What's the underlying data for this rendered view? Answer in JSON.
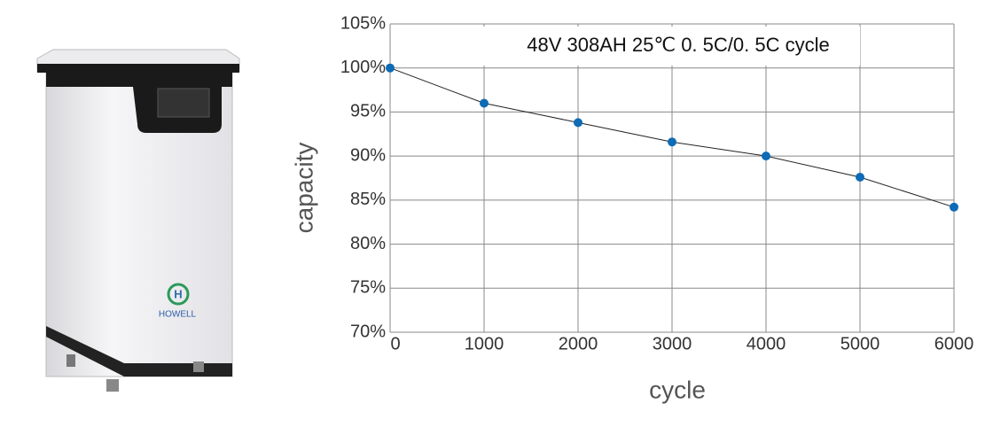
{
  "product": {
    "brand": "HOWELL"
  },
  "chart_data": {
    "type": "line",
    "title": "48V 308AH 25℃ 0. 5C/0. 5C cycle",
    "x_label": "cycle",
    "y_label": "capacity",
    "x": [
      0,
      1000,
      2000,
      3000,
      4000,
      5000,
      6000
    ],
    "values": [
      100,
      96,
      93.8,
      91.6,
      90,
      87.6,
      84.2
    ],
    "color": "#0e6bb5",
    "line_color": "#222222",
    "xlim": [
      0,
      6000
    ],
    "xticks": [
      0,
      1000,
      2000,
      3000,
      4000,
      5000,
      6000
    ],
    "ylim": [
      70,
      105
    ],
    "yticks": [
      {
        "value": 70,
        "label": "70%"
      },
      {
        "value": 75,
        "label": "75%"
      },
      {
        "value": 80,
        "label": "80%"
      },
      {
        "value": 85,
        "label": "85%"
      },
      {
        "value": 90,
        "label": "90%"
      },
      {
        "value": 95,
        "label": "95%"
      },
      {
        "value": 100,
        "label": "100%"
      },
      {
        "value": 105,
        "label": "105%"
      }
    ],
    "grid": true
  }
}
